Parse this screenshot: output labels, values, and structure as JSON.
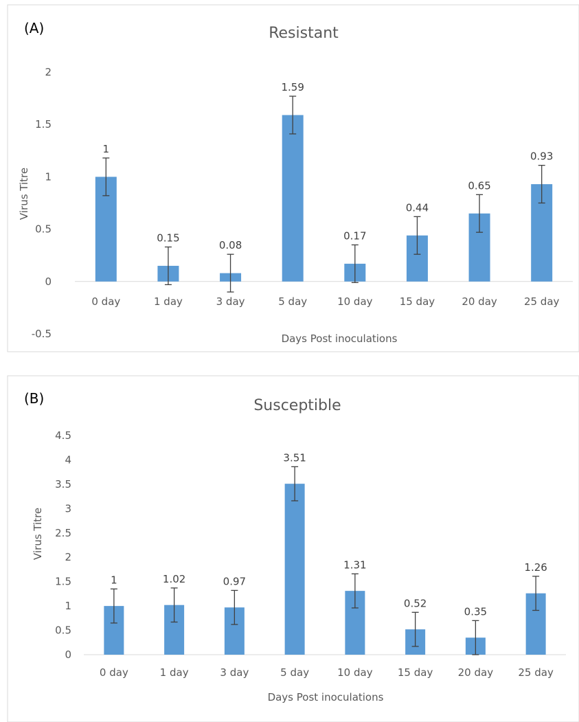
{
  "chart_data": [
    {
      "panel_label": "(A)",
      "type": "bar",
      "title": "Resistant",
      "xlabel": "Days Post inoculations",
      "ylabel": "Virus Titre",
      "categories": [
        "0 day",
        "1 day",
        "3 day",
        "5 day",
        "10 day",
        "15 day",
        "20 day",
        "25 day"
      ],
      "values": [
        1,
        0.15,
        0.08,
        1.59,
        0.17,
        0.44,
        0.65,
        0.93
      ],
      "data_labels": [
        "1",
        "0.15",
        "0.08",
        "1.59",
        "0.17",
        "0.44",
        "0.65",
        "0.93"
      ],
      "error": [
        0.18,
        0.18,
        0.18,
        0.18,
        0.18,
        0.18,
        0.18,
        0.18
      ],
      "yticks": [
        "-0.5",
        "0",
        "0.5",
        "1",
        "1.5",
        "2"
      ],
      "ylim": [
        -0.5,
        2
      ],
      "bar_color": "#5b9bd5",
      "grid": false
    },
    {
      "panel_label": "(B)",
      "type": "bar",
      "title": "Susceptible",
      "xlabel": "Days Post inoculations",
      "ylabel": "Virus Titre",
      "categories": [
        "0 day",
        "1 day",
        "3 day",
        "5 day",
        "10 day",
        "15 day",
        "20 day",
        "25 day"
      ],
      "values": [
        1,
        1.02,
        0.97,
        3.51,
        1.31,
        0.52,
        0.35,
        1.26
      ],
      "data_labels": [
        "1",
        "1.02",
        "0.97",
        "3.51",
        "1.31",
        "0.52",
        "0.35",
        "1.26"
      ],
      "error": [
        0.35,
        0.35,
        0.35,
        0.35,
        0.35,
        0.35,
        0.35,
        0.35
      ],
      "yticks": [
        "0",
        "0.5",
        "1",
        "1.5",
        "2",
        "2.5",
        "3",
        "3.5",
        "4",
        "4.5"
      ],
      "ylim": [
        0,
        4.5
      ],
      "bar_color": "#5b9bd5",
      "grid": false
    }
  ]
}
